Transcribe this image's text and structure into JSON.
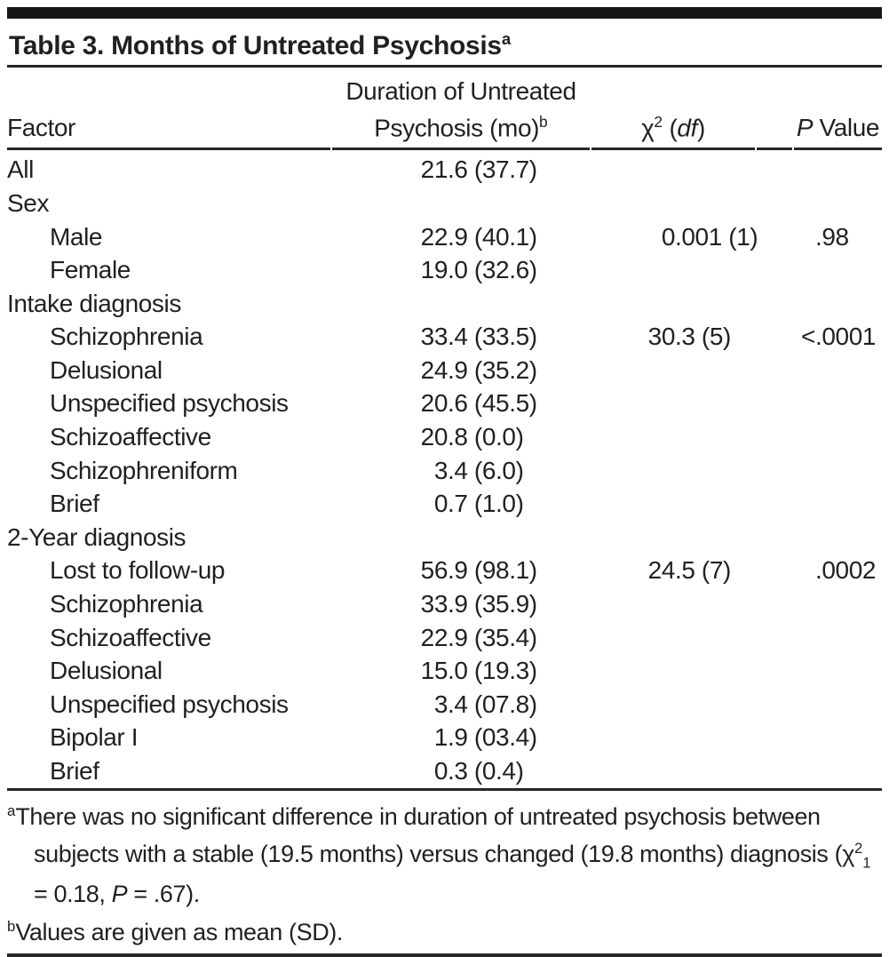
{
  "title": {
    "text": "Table 3. Months of Untreated Psychosis",
    "sup": "a"
  },
  "header": {
    "factor": "Factor",
    "duration_line1": "Duration of Untreated",
    "duration_line2": "Psychosis (mo)",
    "duration_sup": "b",
    "chi_symbol": "χ",
    "chi_sup": "2",
    "chi_open": " (",
    "chi_df": "df",
    "chi_close": ")",
    "p_italic": "P",
    "p_rest": " Value"
  },
  "rows": [
    {
      "label": "All",
      "indent": 0,
      "duration": "21.6 (37.7)",
      "chi2": "",
      "p": ""
    },
    {
      "label": "Sex",
      "indent": 0,
      "duration": "",
      "chi2": "",
      "p": ""
    },
    {
      "label": "Male",
      "indent": 1,
      "duration": "22.9 (40.1)",
      "chi2": "0.001 (1)",
      "p": ".98"
    },
    {
      "label": "Female",
      "indent": 1,
      "duration": "19.0 (32.6)",
      "chi2": "",
      "p": ""
    },
    {
      "label": "Intake diagnosis",
      "indent": 0,
      "duration": "",
      "chi2": "",
      "p": ""
    },
    {
      "label": "Schizophrenia",
      "indent": 1,
      "duration": "33.4 (33.5)",
      "chi2": "30.3 (5)",
      "p": "<.0001"
    },
    {
      "label": "Delusional",
      "indent": 1,
      "duration": "24.9 (35.2)",
      "chi2": "",
      "p": ""
    },
    {
      "label": "Unspecified psychosis",
      "indent": 1,
      "duration": "20.6 (45.5)",
      "chi2": "",
      "p": ""
    },
    {
      "label": "Schizoaffective",
      "indent": 1,
      "duration": "20.8 (0.0)",
      "chi2": "",
      "p": ""
    },
    {
      "label": "Schizophreniform",
      "indent": 1,
      "duration": "3.4 (6.0)",
      "chi2": "",
      "p": ""
    },
    {
      "label": "Brief",
      "indent": 1,
      "duration": "0.7 (1.0)",
      "chi2": "",
      "p": ""
    },
    {
      "label": "2-Year diagnosis",
      "indent": 0,
      "duration": "",
      "chi2": "",
      "p": ""
    },
    {
      "label": "Lost to follow-up",
      "indent": 1,
      "duration": "56.9 (98.1)",
      "chi2": "24.5 (7)",
      "p": ".0002"
    },
    {
      "label": "Schizophrenia",
      "indent": 1,
      "duration": "33.9 (35.9)",
      "chi2": "",
      "p": ""
    },
    {
      "label": "Schizoaffective",
      "indent": 1,
      "duration": "22.9 (35.4)",
      "chi2": "",
      "p": ""
    },
    {
      "label": "Delusional",
      "indent": 1,
      "duration": "15.0 (19.3)",
      "chi2": "",
      "p": ""
    },
    {
      "label": "Unspecified psychosis",
      "indent": 1,
      "duration": "3.4 (07.8)",
      "chi2": "",
      "p": ""
    },
    {
      "label": "Bipolar I",
      "indent": 1,
      "duration": "1.9 (03.4)",
      "chi2": "",
      "p": ""
    },
    {
      "label": "Brief",
      "indent": 1,
      "duration": "0.3 (0.4)",
      "chi2": "",
      "p": ""
    }
  ],
  "footnotes": {
    "a": {
      "marker": "a",
      "before": "There was no significant difference in duration of untreated psychosis between subjects with a stable (19.5 months) versus changed (19.8 months) diagnosis (",
      "chi_symbol": "χ",
      "chi_sup": "2",
      "chi_sub": "1",
      "mid": " = 0.18, ",
      "p": "P",
      "after": " = .67)."
    },
    "b": {
      "marker": "b",
      "text": "Values are given as mean (SD)."
    }
  }
}
